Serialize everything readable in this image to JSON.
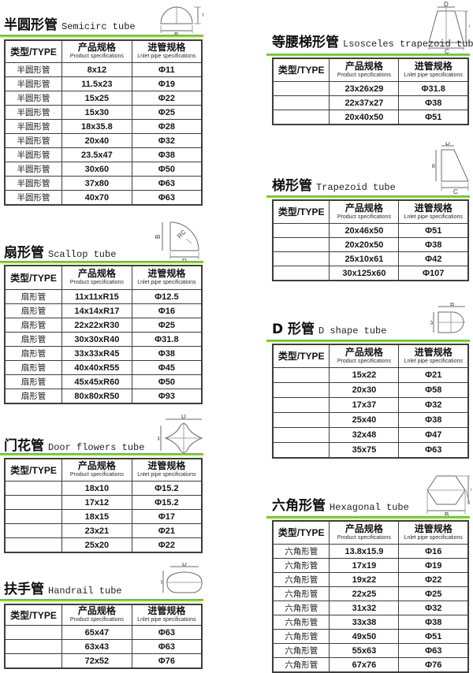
{
  "page": {
    "background": "#ffffff",
    "accent_green": "#7cd41f",
    "table_border": "#3d3d3d"
  },
  "columns_header": {
    "type": "类型/TYPE",
    "spec_zh": "产品规格",
    "spec_en": "Product specifications",
    "inlet_zh": "进管规格",
    "inlet_en": "Lnlet pipe specifications"
  },
  "sections": [
    {
      "id": "semicircle-tube",
      "title_zh": "半圆形管",
      "title_en": "Semicirc tube",
      "diagram": {
        "b": "B",
        "d": "D"
      },
      "rows": [
        {
          "type": "半圆形管",
          "spec": "8x12",
          "inlet": "Φ11"
        },
        {
          "type": "半圆形管",
          "spec": "11.5x23",
          "inlet": "Φ19"
        },
        {
          "type": "半圆形管",
          "spec": "15x25",
          "inlet": "Φ22"
        },
        {
          "type": "半圆形管",
          "spec": "15x30",
          "inlet": "Φ25"
        },
        {
          "type": "半圆形管",
          "spec": "18x35.8",
          "inlet": "Φ28"
        },
        {
          "type": "半圆形管",
          "spec": "20x40",
          "inlet": "Φ32"
        },
        {
          "type": "半圆形管",
          "spec": "23.5x47",
          "inlet": "Φ38"
        },
        {
          "type": "半圆形管",
          "spec": "30x60",
          "inlet": "Φ50"
        },
        {
          "type": "半圆形管",
          "spec": "37x80",
          "inlet": "Φ63"
        },
        {
          "type": "半圆形管",
          "spec": "40x70",
          "inlet": "Φ63"
        }
      ]
    },
    {
      "id": "scallop-tube",
      "title_zh": "扇形管",
      "title_en": "Scallop tube",
      "diagram": {
        "b": "B",
        "d": "D",
        "rc": "RC"
      },
      "rows": [
        {
          "type": "扇形管",
          "spec": "11x11xR15",
          "inlet": "Φ12.5"
        },
        {
          "type": "扇形管",
          "spec": "14x14xR17",
          "inlet": "Φ16"
        },
        {
          "type": "扇形管",
          "spec": "22x22xR30",
          "inlet": "Φ25"
        },
        {
          "type": "扇形管",
          "spec": "30x30xR40",
          "inlet": "Φ31.8"
        },
        {
          "type": "扇形管",
          "spec": "33x33xR45",
          "inlet": "Φ38"
        },
        {
          "type": "扇形管",
          "spec": "40x40xR55",
          "inlet": "Φ45"
        },
        {
          "type": "扇形管",
          "spec": "45x45xR60",
          "inlet": "Φ50"
        },
        {
          "type": "扇形管",
          "spec": "80x80xR50",
          "inlet": "Φ93"
        }
      ]
    },
    {
      "id": "door-flowers-tube",
      "title_zh": "门花管",
      "title_en": "Door flowers tube",
      "diagram": {
        "b": "B",
        "d": "D"
      },
      "rows": [
        {
          "type": "",
          "spec": "18x10",
          "inlet": "Φ15.2"
        },
        {
          "type": "",
          "spec": "17x12",
          "inlet": "Φ15.2"
        },
        {
          "type": "",
          "spec": "18x15",
          "inlet": "Φ17"
        },
        {
          "type": "",
          "spec": "23x21",
          "inlet": "Φ21"
        },
        {
          "type": "",
          "spec": "25x20",
          "inlet": "Φ22"
        }
      ]
    },
    {
      "id": "handrail-tube",
      "title_zh": "扶手管",
      "title_en": "Handrail tube",
      "diagram": {
        "b": "B",
        "d": "D"
      },
      "rows": [
        {
          "type": "",
          "spec": "65x47",
          "inlet": "Φ63"
        },
        {
          "type": "",
          "spec": "63x43",
          "inlet": "Φ63"
        },
        {
          "type": "",
          "spec": "72x52",
          "inlet": "Φ76"
        }
      ]
    },
    {
      "id": "isosceles-trapezoid-tube",
      "title_zh": "等腰梯形管",
      "title_en": "Lsosceles trapezoid tube",
      "diagram": {
        "b": "B",
        "c": "C",
        "d": "D"
      },
      "rows": [
        {
          "type": "",
          "spec": "23x26x29",
          "inlet": "Φ31.8"
        },
        {
          "type": "",
          "spec": "22x37x27",
          "inlet": "Φ38"
        },
        {
          "type": "",
          "spec": "20x40x50",
          "inlet": "Φ51"
        }
      ]
    },
    {
      "id": "trapezoid-tube",
      "title_zh": "梯形管",
      "title_en": "Trapezoid tube",
      "diagram": {
        "b": "B",
        "c": "C",
        "d": "D"
      },
      "rows": [
        {
          "type": "",
          "spec": "20x46x50",
          "inlet": "Φ51"
        },
        {
          "type": "",
          "spec": "20x20x50",
          "inlet": "Φ38"
        },
        {
          "type": "",
          "spec": "25x10x61",
          "inlet": "Φ42"
        },
        {
          "type": "",
          "spec": "30x125x60",
          "inlet": "Φ107"
        }
      ]
    },
    {
      "id": "d-shape-tube",
      "title_zh": "D 形管",
      "title_en": "D shape tube",
      "diagram": {
        "b": "B",
        "d": "D"
      },
      "rows": [
        {
          "type": "",
          "spec": "15x22",
          "inlet": "Φ21"
        },
        {
          "type": "",
          "spec": "20x30",
          "inlet": "Φ58"
        },
        {
          "type": "",
          "spec": "17x37",
          "inlet": "Φ32"
        },
        {
          "type": "",
          "spec": "25x40",
          "inlet": "Φ38"
        },
        {
          "type": "",
          "spec": "32x48",
          "inlet": "Φ47"
        },
        {
          "type": "",
          "spec": "35x75",
          "inlet": "Φ63"
        }
      ]
    },
    {
      "id": "hexagonal-tube",
      "title_zh": "六角形管",
      "title_en": "Hexagonal tube",
      "diagram": {
        "b": "B",
        "d": "D"
      },
      "rows": [
        {
          "type": "六角形管",
          "spec": "13.8x15.9",
          "inlet": "Φ16"
        },
        {
          "type": "六角形管",
          "spec": "17x19",
          "inlet": "Φ19"
        },
        {
          "type": "六角形管",
          "spec": "19x22",
          "inlet": "Φ22"
        },
        {
          "type": "六角形管",
          "spec": "22x25",
          "inlet": "Φ25"
        },
        {
          "type": "六角形管",
          "spec": "31x32",
          "inlet": "Φ32"
        },
        {
          "type": "六角形管",
          "spec": "33x38",
          "inlet": "Φ38"
        },
        {
          "type": "六角形管",
          "spec": "49x50",
          "inlet": "Φ51"
        },
        {
          "type": "六角形管",
          "spec": "55x63",
          "inlet": "Φ63"
        },
        {
          "type": "六角形管",
          "spec": "67x76",
          "inlet": "Φ76"
        }
      ]
    }
  ]
}
